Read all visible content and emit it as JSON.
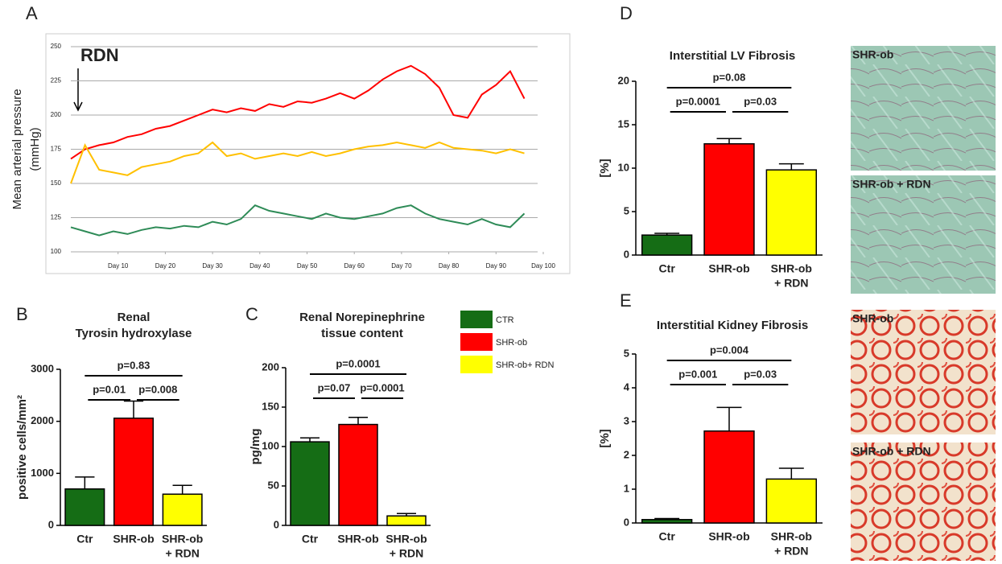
{
  "chart_data": [
    {
      "type": "line",
      "panel": "A",
      "annotation": "RDN",
      "ylabel": [
        "Mean arterial pressure",
        "(mmHg)"
      ],
      "x": [
        0,
        3,
        6,
        9,
        12,
        15,
        18,
        21,
        24,
        27,
        30,
        33,
        36,
        39,
        42,
        45,
        48,
        51,
        54,
        57,
        60,
        63,
        66,
        69,
        72,
        75,
        78,
        81,
        84,
        87,
        90,
        93,
        96
      ],
      "series": [
        {
          "name": "SHR-ob",
          "color": "#ff0000",
          "values": [
            168,
            175,
            178,
            180,
            184,
            186,
            190,
            192,
            196,
            200,
            204,
            202,
            205,
            203,
            208,
            206,
            210,
            209,
            212,
            216,
            212,
            218,
            226,
            232,
            236,
            230,
            220,
            200,
            198,
            215,
            222,
            232,
            212
          ]
        },
        {
          "name": "SHR-ob+ RDN",
          "color": "#ffc000",
          "values": [
            150,
            178,
            160,
            158,
            156,
            162,
            164,
            166,
            170,
            172,
            180,
            170,
            172,
            168,
            170,
            172,
            170,
            173,
            170,
            172,
            175,
            177,
            178,
            180,
            178,
            176,
            180,
            176,
            175,
            174,
            172,
            175,
            172
          ]
        },
        {
          "name": "CTR",
          "color": "#2e8b57",
          "values": [
            118,
            115,
            112,
            115,
            113,
            116,
            118,
            117,
            119,
            118,
            122,
            120,
            124,
            134,
            130,
            128,
            126,
            124,
            128,
            125,
            124,
            126,
            128,
            132,
            134,
            128,
            124,
            122,
            120,
            124,
            120,
            118,
            128
          ]
        }
      ],
      "xlim": [
        0,
        100
      ],
      "xticks": [
        {
          "value": 10,
          "label": "Day 10"
        },
        {
          "value": 20,
          "label": "Day 20"
        },
        {
          "value": 30,
          "label": "Day 30"
        },
        {
          "value": 40,
          "label": "Day 40"
        },
        {
          "value": 50,
          "label": "Day 50"
        },
        {
          "value": 60,
          "label": "Day 60"
        },
        {
          "value": 70,
          "label": "Day 70"
        },
        {
          "value": 80,
          "label": "Day 80"
        },
        {
          "value": 90,
          "label": "Day 90"
        },
        {
          "value": 100,
          "label": "Day 100"
        }
      ],
      "ylim": [
        100,
        250
      ],
      "yticks": [
        100,
        125,
        150,
        175,
        200,
        225,
        250
      ],
      "grid": true
    },
    {
      "type": "bar",
      "panel": "B",
      "title": [
        "Renal",
        "Tyrosin hydroxylase"
      ],
      "ylabel": [
        "positive cells/mm²"
      ],
      "categories": [
        [
          "Ctr"
        ],
        [
          "SHR-ob"
        ],
        [
          "SHR-ob",
          "+ RDN"
        ]
      ],
      "values": [
        700,
        2060,
        600
      ],
      "errors": [
        230,
        330,
        170
      ],
      "colors": [
        "#156d15",
        "#ff0000",
        "#ffff00"
      ],
      "ylim": [
        0,
        3000
      ],
      "yticks": [
        0,
        1000,
        2000,
        3000
      ],
      "brackets": [
        {
          "label": "p=0.01",
          "pair": [
            0,
            1
          ]
        },
        {
          "label": "p=0.008",
          "pair": [
            1,
            2
          ]
        },
        {
          "label": "p=0.83",
          "pair": [
            0,
            2
          ]
        }
      ]
    },
    {
      "type": "bar",
      "panel": "C",
      "title": [
        "Renal Norepinephrine",
        "tissue content"
      ],
      "ylabel": [
        "pg/mg"
      ],
      "categories": [
        [
          "Ctr"
        ],
        [
          "SHR-ob"
        ],
        [
          "SHR-ob",
          "+ RDN"
        ]
      ],
      "values": [
        106,
        128,
        12
      ],
      "errors": [
        5,
        9,
        3
      ],
      "colors": [
        "#156d15",
        "#ff0000",
        "#ffff00"
      ],
      "ylim": [
        0,
        200
      ],
      "yticks": [
        0,
        50,
        100,
        150,
        200
      ],
      "brackets": [
        {
          "label": "p=0.07",
          "pair": [
            0,
            1
          ]
        },
        {
          "label": "p=0.0001",
          "pair": [
            1,
            2
          ]
        },
        {
          "label": "p=0.0001",
          "pair": [
            0,
            2
          ]
        }
      ]
    },
    {
      "type": "bar",
      "panel": "D",
      "title": [
        "Interstitial LV Fibrosis"
      ],
      "ylabel": [
        "[%]"
      ],
      "categories": [
        [
          "Ctr"
        ],
        [
          "SHR-ob"
        ],
        [
          "SHR-ob",
          "+ RDN"
        ]
      ],
      "values": [
        2.3,
        12.8,
        9.8
      ],
      "errors": [
        0.2,
        0.6,
        0.7
      ],
      "colors": [
        "#156d15",
        "#ff0000",
        "#ffff00"
      ],
      "ylim": [
        0,
        20
      ],
      "yticks": [
        0,
        5,
        10,
        15,
        20
      ],
      "brackets": [
        {
          "label": "p=0.0001",
          "pair": [
            0,
            1
          ]
        },
        {
          "label": "p=0.03",
          "pair": [
            1,
            2
          ]
        },
        {
          "label": "p=0.08",
          "pair": [
            0,
            2
          ]
        }
      ]
    },
    {
      "type": "bar",
      "panel": "E",
      "title": [
        "Interstitial Kidney Fibrosis"
      ],
      "ylabel": [
        "[%]"
      ],
      "categories": [
        [
          "Ctr"
        ],
        [
          "SHR-ob"
        ],
        [
          "SHR-ob",
          "+ RDN"
        ]
      ],
      "values": [
        0.1,
        2.72,
        1.3
      ],
      "errors": [
        0.03,
        0.7,
        0.32
      ],
      "colors": [
        "#156d15",
        "#ff0000",
        "#ffff00"
      ],
      "ylim": [
        0,
        5
      ],
      "yticks": [
        0,
        1,
        2,
        3,
        4,
        5
      ],
      "brackets": [
        {
          "label": "p=0.001",
          "pair": [
            0,
            1
          ]
        },
        {
          "label": "p=0.03",
          "pair": [
            1,
            2
          ]
        },
        {
          "label": "p=0.004",
          "pair": [
            0,
            2
          ]
        }
      ]
    }
  ],
  "legend": [
    {
      "name": "CTR",
      "color": "#156d15"
    },
    {
      "name": "SHR-ob",
      "color": "#ff0000"
    },
    {
      "name": "SHR-ob+ RDN",
      "color": "#ffff00"
    }
  ],
  "images": [
    {
      "label": "SHR-ob"
    },
    {
      "label": "SHR-ob + RDN"
    },
    {
      "label": "SHR-ob"
    },
    {
      "label": "SHR-ob + RDN"
    }
  ]
}
